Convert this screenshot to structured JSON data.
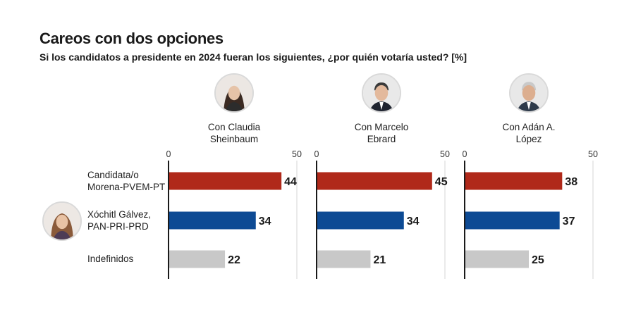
{
  "header": {
    "title": "Careos con dos opciones",
    "subtitle": "Si los candidatos a presidente en 2024 fueran los siguientes, ¿por quién votaría usted?  [%]"
  },
  "panels": [
    {
      "label_lines": [
        "Con Claudia",
        "Sheinbaum"
      ],
      "avatar_icon": "portrait-claudia-sheinbaum"
    },
    {
      "label_lines": [
        "Con Marcelo",
        "Ebrard"
      ],
      "avatar_icon": "portrait-marcelo-ebrard"
    },
    {
      "label_lines": [
        "Con Adán A.",
        "López"
      ],
      "avatar_icon": "portrait-adan-augusto-lopez"
    }
  ],
  "rows": [
    {
      "label_lines": [
        "Candidata/o",
        "Morena-PVEM-PT"
      ]
    },
    {
      "label_lines": [
        "Xóchitl Gálvez,",
        "PAN-PRI-PRD"
      ],
      "avatar_icon": "portrait-xochitl-galvez"
    },
    {
      "label_lines": [
        "Indefinidos"
      ]
    }
  ],
  "colors": {
    "morena": "#b0291a",
    "opposition": "#0d4a94",
    "undecided": "#c8c8c8",
    "grid": "#d4d4d4",
    "axis": "#1a1a1a"
  },
  "chart_data": [
    {
      "type": "bar",
      "orientation": "horizontal",
      "categories": [
        "Candidata/o Morena-PVEM-PT",
        "Xóchitl Gálvez, PAN-PRI-PRD",
        "Indefinidos"
      ],
      "values": [
        44,
        34,
        22
      ],
      "xlim": [
        0,
        50
      ],
      "ticks": [
        0,
        50
      ],
      "grid": true
    },
    {
      "type": "bar",
      "orientation": "horizontal",
      "categories": [
        "Candidata/o Morena-PVEM-PT",
        "Xóchitl Gálvez, PAN-PRI-PRD",
        "Indefinidos"
      ],
      "values": [
        45,
        34,
        21
      ],
      "xlim": [
        0,
        50
      ],
      "ticks": [
        0,
        50
      ],
      "grid": true
    },
    {
      "type": "bar",
      "orientation": "horizontal",
      "categories": [
        "Candidata/o Morena-PVEM-PT",
        "Xóchitl Gálvez, PAN-PRI-PRD",
        "Indefinidos"
      ],
      "values": [
        38,
        37,
        25
      ],
      "xlim": [
        0,
        50
      ],
      "ticks": [
        0,
        50
      ],
      "grid": true
    }
  ]
}
